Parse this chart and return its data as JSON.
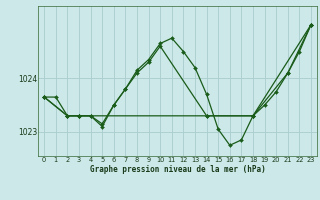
{
  "background_color": "#cce8e8",
  "grid_color": "#aacccc",
  "line_color": "#1a5c1a",
  "marker_color": "#1a5c1a",
  "xlabel": "Graphe pression niveau de la mer (hPa)",
  "xlim": [
    -0.5,
    23.5
  ],
  "ylim": [
    1022.55,
    1025.35
  ],
  "yticks": [
    1023,
    1024
  ],
  "xticks": [
    0,
    1,
    2,
    3,
    4,
    5,
    6,
    7,
    8,
    9,
    10,
    11,
    12,
    13,
    14,
    15,
    16,
    17,
    18,
    19,
    20,
    21,
    22,
    23
  ],
  "series1_x": [
    0,
    1,
    2,
    3,
    4,
    5,
    6,
    7,
    8,
    9,
    10,
    11,
    12,
    13,
    14,
    15,
    16,
    17,
    18,
    19,
    20,
    21,
    22,
    23
  ],
  "series1_y": [
    1023.65,
    1023.65,
    1023.3,
    1023.3,
    1023.3,
    1023.15,
    1023.5,
    1023.8,
    1024.15,
    1024.35,
    1024.65,
    1024.75,
    1024.5,
    1024.2,
    1023.7,
    1023.05,
    1022.75,
    1022.85,
    1023.3,
    1023.5,
    1023.75,
    1024.1,
    1024.5,
    1025.0
  ],
  "series2_x": [
    0,
    2,
    3,
    4,
    5,
    6,
    7,
    8,
    9,
    10,
    14,
    18,
    21,
    23
  ],
  "series2_y": [
    1023.65,
    1023.3,
    1023.3,
    1023.3,
    1023.1,
    1023.5,
    1023.8,
    1024.1,
    1024.3,
    1024.6,
    1023.3,
    1023.3,
    1024.1,
    1025.0
  ],
  "series3_x": [
    0,
    2,
    3,
    14,
    18,
    23
  ],
  "series3_y": [
    1023.65,
    1023.3,
    1023.3,
    1023.3,
    1023.3,
    1025.0
  ]
}
